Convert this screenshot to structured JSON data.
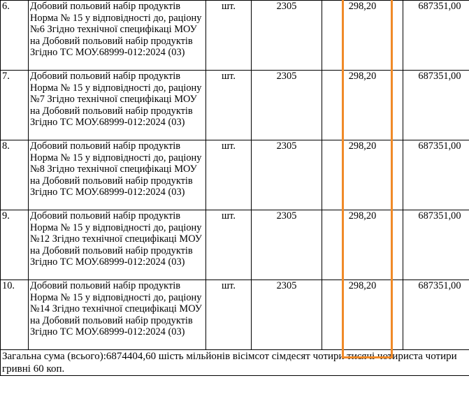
{
  "table": {
    "rows": [
      {
        "num": "6.",
        "description": "Добовий польовий набір продуктів Норма № 15 у відповідності до, раціону №6 Згідно технічної специфікаці МОУ на Добовий польовий набір продуктів Згідно ТС МОУ.68999-012:2024 (03)",
        "unit": "шт.",
        "quantity": "2305",
        "price": "298,20",
        "sum": "687351,00"
      },
      {
        "num": "7.",
        "description": "Добовий польовий набір продуктів Норма № 15 у відповідності до, раціону №7 Згідно технічної специфікаці МОУ на Добовий польовий набір продуктів Згідно ТС МОУ.68999-012:2024 (03)",
        "unit": "шт.",
        "quantity": "2305",
        "price": "298,20",
        "sum": "687351,00"
      },
      {
        "num": "8.",
        "description": "Добовий польовий набір продуктів Норма № 15 у відповідності до, раціону №8 Згідно технічної специфікаці МОУ на Добовий польовий набір продуктів Згідно ТС МОУ.68999-012:2024 (03)",
        "unit": "шт.",
        "quantity": "2305",
        "price": "298,20",
        "sum": "687351,00"
      },
      {
        "num": "9.",
        "description": "Добовий польовий набір продуктів Норма № 15 у відповідності до, раціону №12 Згідно технічної специфікаці МОУ на Добовий польовий набір продуктів Згідно ТС МОУ.68999-012:2024 (03)",
        "unit": "шт.",
        "quantity": "2305",
        "price": "298,20",
        "sum": "687351,00"
      },
      {
        "num": "10.",
        "description": "Добовий польовий набір продуктів Норма № 15 у відповідності до, раціону №14 Згідно технічної специфікаці МОУ на Добовий польовий набір продуктів Згідно ТС МОУ.68999-012:2024 (03)",
        "unit": "шт.",
        "quantity": "2305",
        "price": "298,20",
        "sum": "687351,00"
      }
    ],
    "total_text": "Загальна сума (всього):6874404,60 шість мільйонів вісімсот сімдесят чотири тисячі чотириста чотири гривні 60 коп."
  },
  "colors": {
    "highlight_border": "#f08a28"
  }
}
